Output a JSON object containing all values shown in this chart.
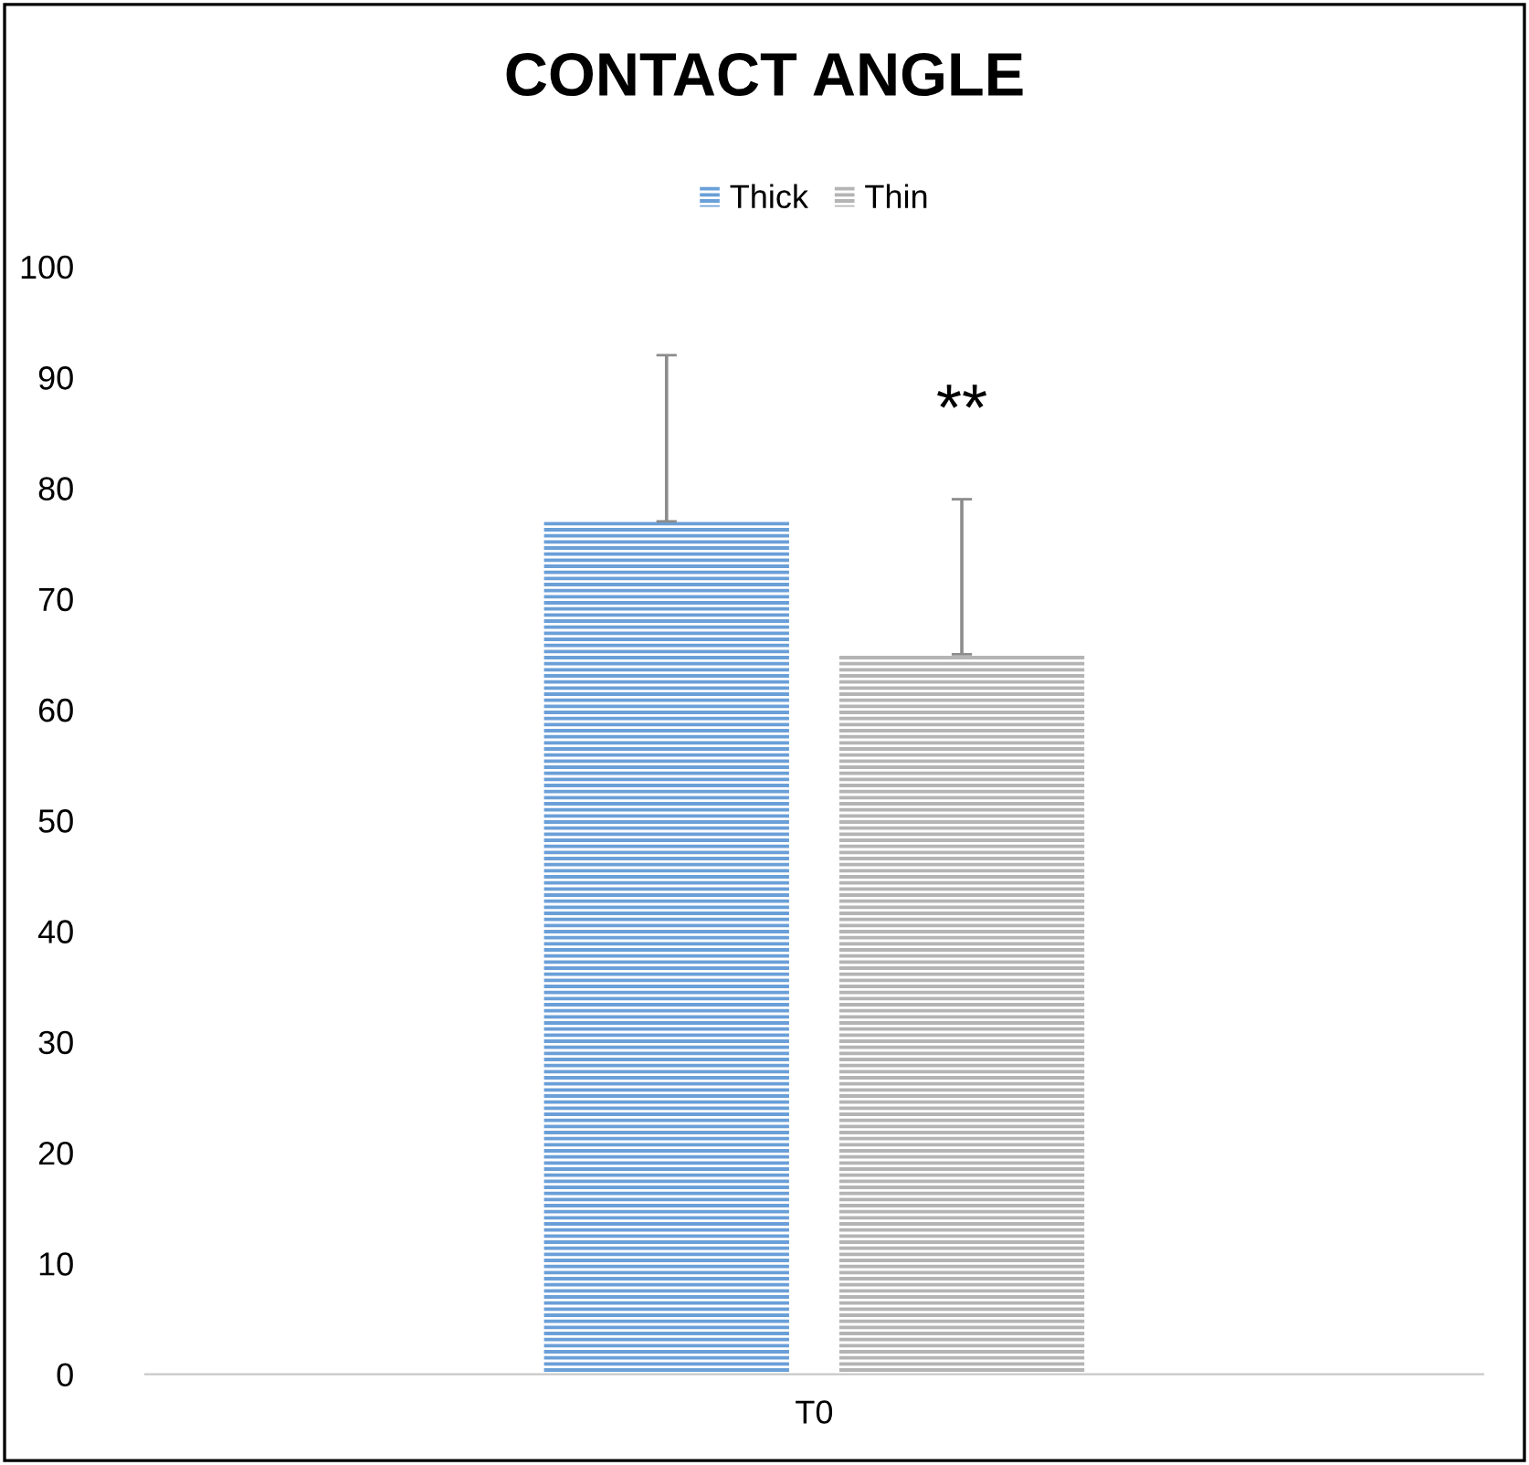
{
  "chart_data": {
    "type": "bar",
    "title": "CONTACT ANGLE",
    "categories": [
      "T0"
    ],
    "series": [
      {
        "name": "Thick",
        "color": "#6a9fd8",
        "values": [
          77
        ],
        "errors": [
          [
            77,
            92
          ]
        ]
      },
      {
        "name": "Thin",
        "color": "#b4b4b4",
        "values": [
          65
        ],
        "errors": [
          [
            65,
            79
          ]
        ]
      }
    ],
    "ylim": [
      0,
      100
    ],
    "yticks": [
      0,
      10,
      20,
      30,
      40,
      50,
      60,
      70,
      80,
      90,
      100
    ],
    "annotations": [
      "**"
    ],
    "legend": "top",
    "grid": false
  }
}
